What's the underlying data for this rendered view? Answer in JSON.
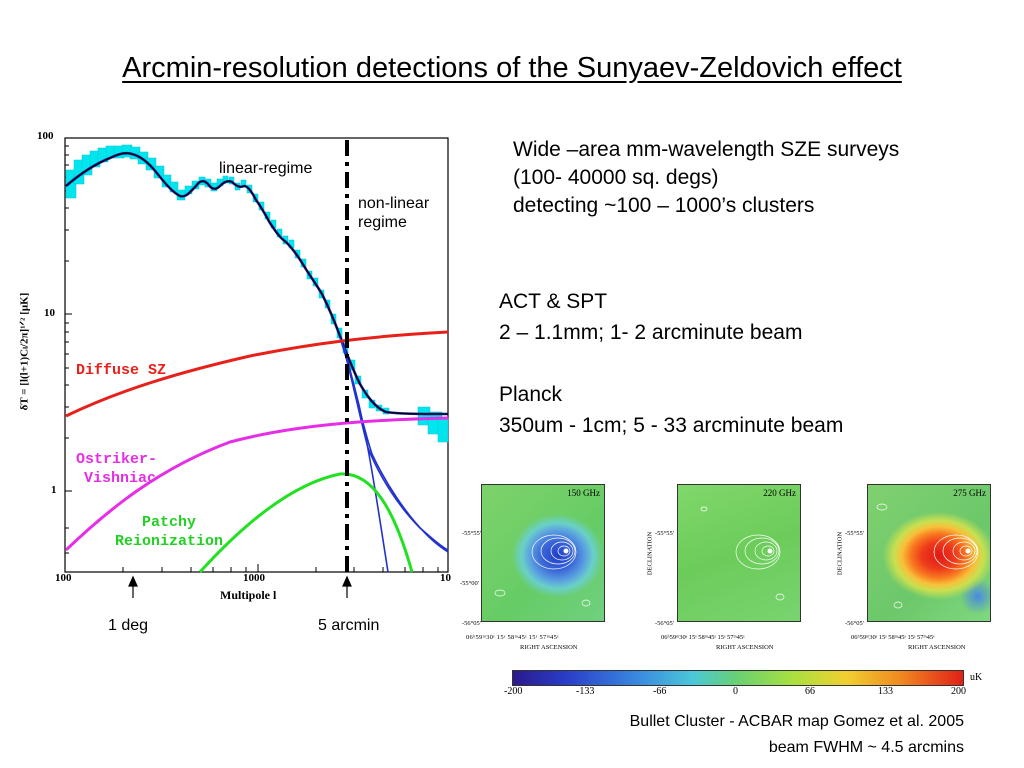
{
  "title": "Arcmin-resolution detections of the Sunyaev-Zeldovich effect",
  "plot": {
    "y_ticks": [
      "100",
      "10",
      "1"
    ],
    "x_ticks": [
      "100",
      "1000",
      "10"
    ],
    "x_label": "Multipole l",
    "y_label": "δT = [l(l+1)Cₗ/2π]¹ᐟ² [μK]",
    "annot_linear": "linear-regime",
    "annot_nonlinear_1": "non-linear",
    "annot_nonlinear_2": "regime",
    "curve_diffuse": "Diffuse SZ",
    "curve_ov_1": "Ostriker-",
    "curve_ov_2": "Vishniac",
    "curve_patchy_1": "Patchy",
    "curve_patchy_2": "Reionization",
    "arrow_left_label": "1 deg",
    "arrow_right_label": "5 arcmin",
    "colors": {
      "diffuse": "#e8201a",
      "ostriker": "#e62ee6",
      "patchy": "#22e022",
      "cmb": "#1a1a8c",
      "data": "#00e5ee"
    }
  },
  "text_block1": {
    "line1": "Wide –area mm-wavelength  SZE surveys",
    "line2": "(100- 40000 sq. degs)",
    "line3": "detecting  ~100 – 1000’s clusters"
  },
  "text_block2": {
    "line1": "ACT & SPT",
    "line2": "2 – 1.1mm; 1- 2 arcminute beam",
    "line3": "Planck",
    "line4": "350um -  1cm;    5 - 33 arcminute beam"
  },
  "maps": {
    "panels": [
      {
        "freq": "150 GHz"
      },
      {
        "freq": "220 GHz"
      },
      {
        "freq": "275 GHz"
      }
    ],
    "x_axis_label": "RIGHT ASCENSION",
    "y_axis_label": "DECLINATION",
    "colorbar_ticks": [
      "-200",
      "-133",
      "-66",
      "0",
      "66",
      "133",
      "200"
    ],
    "colorbar_unit": "uK"
  },
  "caption": {
    "line1": "Bullet Cluster - ACBAR map   Gomez et al. 2005",
    "line2": "beam FWHM ~ 4.5 arcmins"
  }
}
